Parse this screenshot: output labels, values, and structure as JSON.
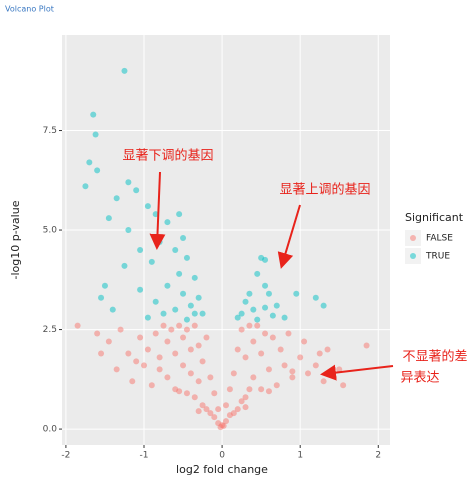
{
  "chart_data": {
    "type": "scatter",
    "title": "Volcano Plot",
    "x_label": "log2 fold change",
    "y_label": "-log10 p-value",
    "legend_title": "Significant",
    "legend": "right",
    "grid": true,
    "xlim": [
      -2.05,
      2.15
    ],
    "ylim": [
      -0.4,
      9.9
    ],
    "xticks": [
      -2,
      -1,
      0,
      1,
      2
    ],
    "yticks": [
      {
        "value": 0,
        "label": "0.0"
      },
      {
        "value": 2.5,
        "label": "2.5"
      },
      {
        "value": 5,
        "label": "5.0"
      },
      {
        "value": 7.5,
        "label": "7.5"
      }
    ],
    "series": [
      {
        "name": "FALSE",
        "color": "#F8766D",
        "x": [
          -1.85,
          -1.6,
          -1.55,
          -1.45,
          -1.35,
          -1.3,
          -1.2,
          -1.15,
          -1.05,
          -1.0,
          -0.95,
          -0.9,
          -0.85,
          -0.8,
          -0.75,
          -0.7,
          -0.7,
          -0.65,
          -0.6,
          -0.6,
          -0.55,
          -0.5,
          -0.5,
          -0.45,
          -0.45,
          -0.4,
          -0.4,
          -0.35,
          -0.35,
          -0.3,
          -0.3,
          -0.25,
          -0.25,
          -0.2,
          -0.2,
          -0.15,
          -0.15,
          -0.1,
          -0.1,
          -0.05,
          -0.05,
          -0.02,
          0.0,
          0.02,
          0.05,
          0.05,
          0.1,
          0.1,
          0.15,
          0.15,
          0.2,
          0.2,
          0.25,
          0.25,
          0.3,
          0.3,
          0.35,
          0.35,
          0.4,
          0.4,
          0.45,
          0.5,
          0.5,
          0.55,
          0.6,
          0.65,
          0.7,
          0.75,
          0.8,
          0.85,
          0.9,
          1.0,
          1.05,
          1.1,
          1.2,
          1.3,
          1.35,
          1.5,
          1.55,
          1.85,
          -1.1,
          -0.8,
          -0.55,
          -0.3,
          0.3,
          0.6,
          0.9,
          1.25
        ],
        "values": [
          2.6,
          2.4,
          1.9,
          2.2,
          1.5,
          2.5,
          1.9,
          1.2,
          2.3,
          1.6,
          2.0,
          1.1,
          2.4,
          1.8,
          2.6,
          1.3,
          2.2,
          2.5,
          1.0,
          1.9,
          2.6,
          1.6,
          2.3,
          0.9,
          2.5,
          1.4,
          2.0,
          0.8,
          2.6,
          1.2,
          2.1,
          0.6,
          1.7,
          0.5,
          2.3,
          0.4,
          1.3,
          0.3,
          0.9,
          0.15,
          0.5,
          0.05,
          0.1,
          0.08,
          0.2,
          0.6,
          0.35,
          1.0,
          0.4,
          1.4,
          0.5,
          2.0,
          0.7,
          2.5,
          0.8,
          1.8,
          1.0,
          2.6,
          1.3,
          2.2,
          2.6,
          1.0,
          1.9,
          2.4,
          1.5,
          2.3,
          1.1,
          2.0,
          1.6,
          2.4,
          1.3,
          1.8,
          2.2,
          1.4,
          1.6,
          1.2,
          2.0,
          1.5,
          1.1,
          2.1,
          1.7,
          1.5,
          0.95,
          0.45,
          0.55,
          0.95,
          1.45,
          1.9
        ]
      },
      {
        "name": "TRUE",
        "color": "#00BFC4",
        "x": [
          -1.25,
          -1.65,
          -1.62,
          -1.7,
          -1.75,
          -1.6,
          -1.2,
          -1.1,
          -1.35,
          -1.45,
          -1.2,
          -0.95,
          -0.85,
          -0.7,
          -0.55,
          -0.8,
          -0.6,
          -0.5,
          -0.45,
          -0.9,
          -1.05,
          -1.25,
          -1.5,
          -1.55,
          -1.4,
          -1.05,
          -0.85,
          -0.7,
          -0.6,
          -0.5,
          -0.4,
          -0.35,
          -0.3,
          -0.75,
          -0.95,
          -0.25,
          -0.45,
          -0.55,
          -0.35,
          0.5,
          0.55,
          0.45,
          0.55,
          0.6,
          0.35,
          0.4,
          0.3,
          0.7,
          0.55,
          0.25,
          0.45,
          0.95,
          1.2,
          1.3,
          0.2,
          0.65,
          0.8
        ],
        "values": [
          9.0,
          7.9,
          7.4,
          6.7,
          6.1,
          6.5,
          6.2,
          6.0,
          5.8,
          5.3,
          5.0,
          5.6,
          5.4,
          5.2,
          5.4,
          4.7,
          4.5,
          4.8,
          4.3,
          4.2,
          4.5,
          4.1,
          3.6,
          3.3,
          3.0,
          3.5,
          3.2,
          3.6,
          3.0,
          3.4,
          3.1,
          2.9,
          3.3,
          2.9,
          2.8,
          2.9,
          2.75,
          3.9,
          3.8,
          4.3,
          4.25,
          3.9,
          3.6,
          3.4,
          3.4,
          3.0,
          3.2,
          3.1,
          3.05,
          2.9,
          2.75,
          3.4,
          3.3,
          3.1,
          2.8,
          2.85,
          2.8
        ]
      }
    ],
    "annotations": [
      "显著下调的基因",
      "显著上调的基因",
      "不显著的差",
      "异表达"
    ]
  }
}
